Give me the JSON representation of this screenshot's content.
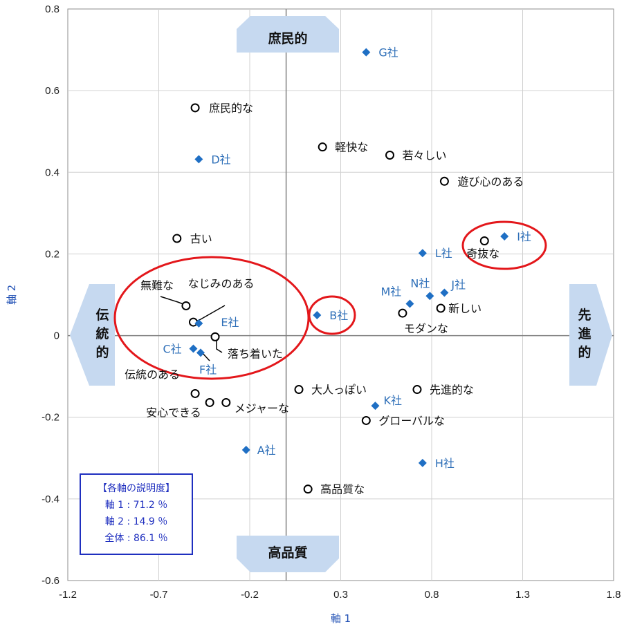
{
  "chart_data": {
    "type": "scatter",
    "title": "",
    "xlabel": "軸 1",
    "ylabel": "軸 2",
    "xlim": [
      -1.2,
      1.8
    ],
    "ylim": [
      -0.6,
      0.8
    ],
    "x_ticks": [
      -1.2,
      -0.7,
      -0.2,
      0.3,
      0.8,
      1.3,
      1.8
    ],
    "y_ticks": [
      -0.6,
      -0.4,
      -0.2,
      0,
      0.2,
      0.4,
      0.6,
      0.8
    ],
    "x_tick_labels": [
      "-1.2",
      "-0.7",
      "-0.2",
      "0.3",
      "0.8",
      "1.3",
      "1.8"
    ],
    "y_tick_labels": [
      "-0.6",
      "-0.4",
      "-0.2",
      "0",
      "0.2",
      "0.4",
      "0.6",
      "0.8"
    ],
    "grid": true,
    "series": [
      {
        "name": "attributes",
        "marker": "circle",
        "color": "#000000",
        "points": [
          {
            "label": "庶民的な",
            "x": -0.5,
            "y": 0.558
          },
          {
            "label": "軽快な",
            "x": 0.2,
            "y": 0.462
          },
          {
            "label": "若々しい",
            "x": 0.57,
            "y": 0.442
          },
          {
            "label": "遊び心のある",
            "x": 0.87,
            "y": 0.378
          },
          {
            "label": "古い",
            "x": -0.6,
            "y": 0.238
          },
          {
            "label": "奇抜な",
            "x": 1.09,
            "y": 0.232
          },
          {
            "label": "無難な",
            "x": -0.55,
            "y": 0.073
          },
          {
            "label": "なじみのある",
            "x": -0.51,
            "y": 0.033
          },
          {
            "label": "新しい",
            "x": 0.85,
            "y": 0.067
          },
          {
            "label": "モダンな",
            "x": 0.64,
            "y": 0.055
          },
          {
            "label": "落ち着いた",
            "x": -0.39,
            "y": -0.003
          },
          {
            "label": "大人っぽい",
            "x": 0.07,
            "y": -0.132
          },
          {
            "label": "先進的な",
            "x": 0.72,
            "y": -0.132
          },
          {
            "label": "伝統のある",
            "x": -0.5,
            "y": -0.142
          },
          {
            "label": "安心できる",
            "x": -0.42,
            "y": -0.164
          },
          {
            "label": "メジャーな",
            "x": -0.33,
            "y": -0.164
          },
          {
            "label": "グローバルな",
            "x": 0.44,
            "y": -0.208
          },
          {
            "label": "高品質な",
            "x": 0.12,
            "y": -0.376
          }
        ]
      },
      {
        "name": "companies",
        "marker": "diamond",
        "color": "#1f6fc4",
        "points": [
          {
            "label": "G社",
            "x": 0.44,
            "y": 0.694
          },
          {
            "label": "D社",
            "x": -0.48,
            "y": 0.432
          },
          {
            "label": "I社",
            "x": 1.2,
            "y": 0.243
          },
          {
            "label": "L社",
            "x": 0.75,
            "y": 0.202
          },
          {
            "label": "J社",
            "x": 0.87,
            "y": 0.105
          },
          {
            "label": "N社",
            "x": 0.79,
            "y": 0.097
          },
          {
            "label": "M社",
            "x": 0.68,
            "y": 0.078
          },
          {
            "label": "B社",
            "x": 0.17,
            "y": 0.05
          },
          {
            "label": "E社",
            "x": -0.48,
            "y": 0.03
          },
          {
            "label": "C社",
            "x": -0.51,
            "y": -0.032
          },
          {
            "label": "F社",
            "x": -0.47,
            "y": -0.042
          },
          {
            "label": "K社",
            "x": 0.49,
            "y": -0.172
          },
          {
            "label": "H社",
            "x": 0.75,
            "y": -0.312
          },
          {
            "label": "A社",
            "x": -0.22,
            "y": -0.28
          }
        ]
      }
    ],
    "direction_labels": {
      "top": "庶民的",
      "bottom": "高品質",
      "left": "伝統的",
      "right": "先進的"
    },
    "highlight_circles_color": "#e3171b",
    "arrow_color": "#c6d9f0"
  },
  "info_box": {
    "title": "【各軸の説明度】",
    "line1": "軸 1 : 71.2 ％",
    "line2": "軸 2 : 14.9 ％",
    "line3": "全体 : 86.1 ％"
  }
}
